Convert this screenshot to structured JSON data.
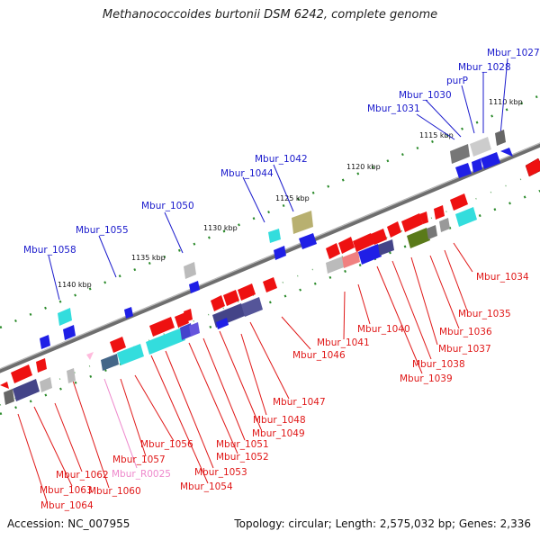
{
  "title": "Methanococcoides burtonii DSM 6242, complete genome",
  "accession": "Accession: NC_007955",
  "summary": "Topology: circular; Length: 2,575,032 bp; Genes: 2,336",
  "scale_labels": [
    "1110 kbp",
    "1115 kbp",
    "1120 kbp",
    "1125 kbp",
    "1130 kbp",
    "1135 kbp",
    "1140 kbp"
  ],
  "genes_top": [
    "Mbur_1027",
    "Mbur_1028",
    "purP",
    "Mbur_1030",
    "Mbur_1031",
    "Mbur_1042",
    "Mbur_1044",
    "Mbur_1050",
    "Mbur_1055",
    "Mbur_1058"
  ],
  "genes_bottom": [
    "Mbur_1034",
    "Mbur_1035",
    "Mbur_1036",
    "Mbur_1037",
    "Mbur_1038",
    "Mbur_1039",
    "Mbur_1040",
    "Mbur_1041",
    "Mbur_1046",
    "Mbur_1047",
    "Mbur_1048",
    "Mbur_1049",
    "Mbur_1051",
    "Mbur_1052",
    "Mbur_1053",
    "Mbur_1054",
    "Mbur_1056",
    "Mbur_1057",
    "Mbur_R0025",
    "Mbur_1060",
    "Mbur_1062",
    "Mbur_1063",
    "Mbur_1064"
  ],
  "colors": {
    "top_label": "#1a1acc",
    "bottom_label": "#e01818",
    "rna_label": "#ee88cc",
    "backbone": "#808080",
    "tick": "#2a8a2a"
  }
}
